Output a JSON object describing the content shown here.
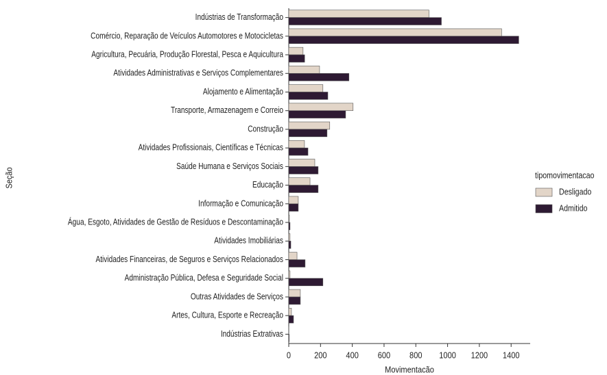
{
  "chart_data": {
    "type": "barh",
    "xlabel": "Movimentacão",
    "ylabel": "Seção",
    "legend_title": "tipomovimentacao",
    "legend": "right",
    "categories": [
      "Indústrias de Transformação",
      "Comércio, Reparação de Veículos Automotores e Motocicletas",
      "Agricultura, Pecuária, Produção Florestal, Pesca e Aquicultura",
      "Atividades Administrativas e Serviços Complementares",
      "Alojamento e Alimentação",
      "Transporte, Armazenagem e Correio",
      "Construção",
      "Atividades Profissionais, Científicas e Técnicas",
      "Saúde Humana e Serviços Sociais",
      "Educação",
      "Informação e Comunicação",
      "Água, Esgoto, Atividades de Gestão de Resíduos e Descontaminação",
      "Atividades Imobiliárias",
      "Atividades Financeiras, de Seguros e Serviços Relacionados",
      "Administração Pública, Defesa e Seguridade Social",
      "Outras Atividades de Serviços",
      "Artes, Cultura, Esporte e Recreação",
      "Indústrias Extrativas"
    ],
    "series": [
      {
        "name": "Desligado",
        "color": "#e2d5c8",
        "values": [
          883,
          1340,
          90,
          194,
          215,
          405,
          258,
          99,
          164,
          134,
          60,
          4,
          8,
          52,
          8,
          73,
          17,
          1
        ]
      },
      {
        "name": "Admitido",
        "color": "#2e1a33",
        "values": [
          961,
          1448,
          100,
          379,
          246,
          358,
          241,
          121,
          185,
          185,
          60,
          8,
          13,
          103,
          215,
          73,
          30,
          3
        ]
      }
    ],
    "xlim": [
      0,
      1520
    ],
    "xticks": [
      0,
      200,
      400,
      600,
      800,
      1000,
      1200,
      1400
    ]
  }
}
